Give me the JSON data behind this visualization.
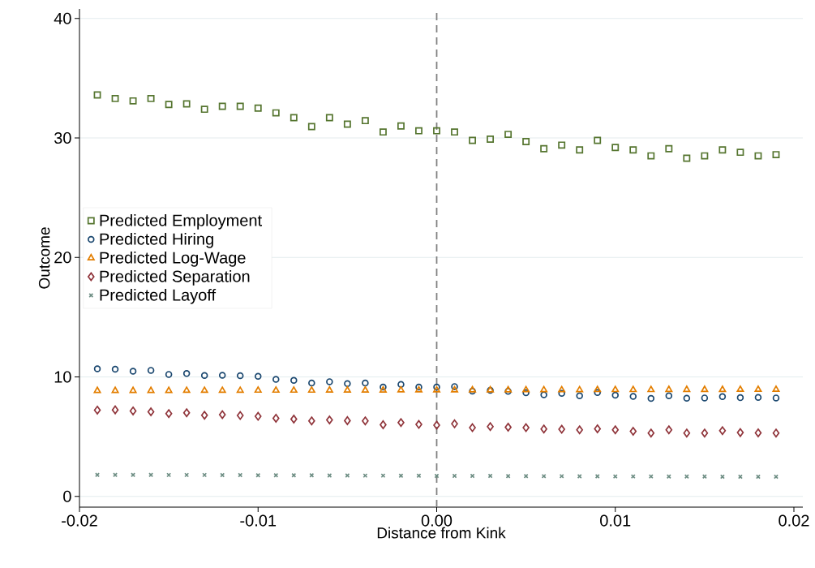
{
  "chart_data": {
    "type": "scatter",
    "xlabel": "Distance from Kink",
    "ylabel": "Outcome",
    "x": [
      -0.019,
      -0.018,
      -0.017,
      -0.016,
      -0.015,
      -0.014,
      -0.013,
      -0.012,
      -0.011,
      -0.01,
      -0.009,
      -0.008,
      -0.007,
      -0.006,
      -0.005,
      -0.004,
      -0.003,
      -0.002,
      -0.001,
      0.0,
      0.001,
      0.002,
      0.003,
      0.004,
      0.005,
      0.006,
      0.007,
      0.008,
      0.009,
      0.01,
      0.011,
      0.012,
      0.013,
      0.014,
      0.015,
      0.016,
      0.017,
      0.018,
      0.019
    ],
    "series": [
      {
        "name": "Predicted Employment",
        "color": "#55752f",
        "marker": "square",
        "values": [
          33.6,
          33.3,
          33.1,
          33.3,
          32.8,
          32.85,
          32.4,
          32.65,
          32.65,
          32.5,
          32.1,
          31.7,
          30.95,
          31.7,
          31.15,
          31.45,
          30.5,
          31.0,
          30.6,
          30.6,
          30.5,
          29.8,
          29.9,
          30.3,
          29.7,
          29.1,
          29.4,
          29.0,
          29.8,
          29.2,
          29.0,
          28.5,
          29.1,
          28.3,
          28.5,
          29.0,
          28.8,
          28.5,
          28.6
        ]
      },
      {
        "name": "Predicted Hiring",
        "color": "#1a476f",
        "marker": "circle",
        "values": [
          10.68,
          10.64,
          10.48,
          10.55,
          10.21,
          10.28,
          10.12,
          10.14,
          10.1,
          10.05,
          9.8,
          9.71,
          9.49,
          9.6,
          9.44,
          9.49,
          9.15,
          9.37,
          9.15,
          9.15,
          9.19,
          8.81,
          8.88,
          8.8,
          8.67,
          8.51,
          8.62,
          8.42,
          8.69,
          8.47,
          8.37,
          8.2,
          8.42,
          8.22,
          8.24,
          8.35,
          8.26,
          8.28,
          8.24
        ]
      },
      {
        "name": "Predicted Log-Wage",
        "color": "#e37e00",
        "marker": "triangle",
        "values": [
          8.85,
          8.85,
          8.85,
          8.85,
          8.85,
          8.86,
          8.86,
          8.86,
          8.86,
          8.87,
          8.87,
          8.87,
          8.87,
          8.88,
          8.88,
          8.88,
          8.88,
          8.89,
          8.89,
          8.89,
          8.9,
          8.9,
          8.9,
          8.9,
          8.91,
          8.91,
          8.91,
          8.91,
          8.92,
          8.92,
          8.92,
          8.92,
          8.93,
          8.93,
          8.93,
          8.93,
          8.94,
          8.94,
          8.94
        ]
      },
      {
        "name": "Predicted Separation",
        "color": "#90353b",
        "marker": "diamond",
        "values": [
          7.22,
          7.24,
          7.15,
          7.08,
          6.93,
          7.0,
          6.79,
          6.84,
          6.77,
          6.7,
          6.54,
          6.47,
          6.32,
          6.4,
          6.34,
          6.32,
          6.0,
          6.18,
          6.02,
          5.96,
          6.07,
          5.75,
          5.84,
          5.79,
          5.75,
          5.64,
          5.62,
          5.57,
          5.66,
          5.57,
          5.45,
          5.3,
          5.57,
          5.3,
          5.3,
          5.5,
          5.34,
          5.32,
          5.3
        ]
      },
      {
        "name": "Predicted Layoff",
        "color": "#6e8e84",
        "marker": "cross",
        "values": [
          1.8,
          1.8,
          1.8,
          1.8,
          1.79,
          1.79,
          1.79,
          1.78,
          1.78,
          1.77,
          1.77,
          1.76,
          1.76,
          1.75,
          1.75,
          1.74,
          1.74,
          1.73,
          1.73,
          1.72,
          1.72,
          1.71,
          1.71,
          1.7,
          1.7,
          1.69,
          1.69,
          1.68,
          1.68,
          1.67,
          1.67,
          1.67,
          1.66,
          1.66,
          1.66,
          1.65,
          1.65,
          1.65,
          1.65
        ]
      }
    ],
    "xlim": [
      -0.02,
      0.0205
    ],
    "ylim": [
      -0.9,
      40.8
    ],
    "xticks": [
      {
        "value": -0.02,
        "label": "-0.02"
      },
      {
        "value": -0.01,
        "label": "-0.01"
      },
      {
        "value": 0,
        "label": "0.00"
      },
      {
        "value": 0.01,
        "label": "0.01"
      },
      {
        "value": 0.02,
        "label": "0.02"
      }
    ],
    "yticks": [
      0,
      10,
      20,
      30,
      40
    ],
    "grid": "y",
    "legend": "left",
    "ref_lines": [
      {
        "axis": "x",
        "value": 0,
        "color": "#808080",
        "line_style": "dashed"
      }
    ]
  }
}
